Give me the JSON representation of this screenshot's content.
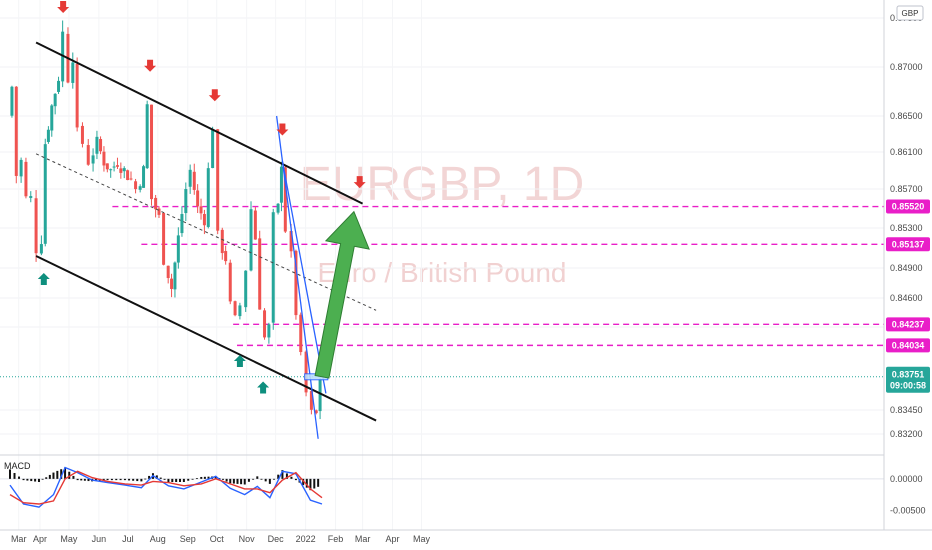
{
  "instrument": {
    "symbol": "EURGBP, 1D",
    "name": "Euro / British Pound",
    "currency": "GBP"
  },
  "indicator": {
    "label": "MACD"
  },
  "colors": {
    "bull": "#26a69a",
    "bear": "#ef5350",
    "level": "#e91ec8",
    "channel": "#111111",
    "trend": "#2962ff",
    "arrow": "#4caf50",
    "macd": "#2962ff",
    "signal": "#e53935",
    "marker_up": "#0e8f7e",
    "marker_down": "#e53935"
  },
  "chart_data": [
    {
      "type": "candlestick",
      "title": "EURGBP, 1D",
      "subtitle": "Euro / British Pound",
      "x_ticks": [
        "Mar",
        "Apr",
        "May",
        "Jun",
        "Jul",
        "Aug",
        "Sep",
        "Oct",
        "Nov",
        "Dec",
        "2022",
        "Feb",
        "Mar",
        "Apr",
        "May"
      ],
      "y_ticks": [
        "0.87300",
        "0.87000",
        "0.86500",
        "0.86100",
        "0.85700",
        "0.85300",
        "0.84900",
        "0.84600",
        "0.84200",
        "0.83450",
        "0.83200"
      ],
      "ylim": [
        0.8315,
        0.874
      ],
      "price_badges": [
        {
          "label": "0.85520",
          "value": 0.8552,
          "color": "#e91ec8"
        },
        {
          "label": "0.85137",
          "value": 0.85137,
          "color": "#e91ec8"
        },
        {
          "label": "0.84237",
          "value": 0.84237,
          "color": "#e91ec8"
        },
        {
          "label": "0.84034",
          "value": 0.84034,
          "color": "#e91ec8"
        }
      ],
      "last_price": {
        "label": "0.83751",
        "countdown": "09:00:58",
        "value": 0.83751,
        "color": "#26a69a"
      },
      "horizontal_levels": [
        0.8552,
        0.85137,
        0.84237,
        0.84034
      ],
      "channel": {
        "upper": [
          [
            "2021-03-28",
            0.8715
          ],
          [
            "2022-03-01",
            0.8555
          ]
        ],
        "lower": [
          [
            "2021-03-28",
            0.8502
          ],
          [
            "2022-03-15",
            0.8334
          ]
        ],
        "mid": [
          [
            "2021-03-28",
            0.8608
          ],
          [
            "2022-03-15",
            0.8443
          ]
        ]
      },
      "projection_target": 0.8552,
      "markers": [
        {
          "date": "2021-04-05",
          "type": "up"
        },
        {
          "date": "2021-04-25",
          "type": "down"
        },
        {
          "date": "2021-07-24",
          "type": "down"
        },
        {
          "date": "2021-09-29",
          "type": "down"
        },
        {
          "date": "2021-10-25",
          "type": "up"
        },
        {
          "date": "2021-11-18",
          "type": "up"
        },
        {
          "date": "2021-12-08",
          "type": "down"
        },
        {
          "date": "2022-02-26",
          "type": "down"
        }
      ],
      "ohlc_path": [
        [
          "2021-03-01",
          0.865
        ],
        [
          "2021-03-05",
          0.868
        ],
        [
          "2021-03-10",
          0.8585
        ],
        [
          "2021-03-15",
          0.86
        ],
        [
          "2021-03-20",
          0.856
        ],
        [
          "2021-03-25",
          0.856
        ],
        [
          "2021-03-31",
          0.851
        ],
        [
          "2021-04-05",
          0.852
        ],
        [
          "2021-04-08",
          0.862
        ],
        [
          "2021-04-15",
          0.866
        ],
        [
          "2021-04-22",
          0.869
        ],
        [
          "2021-04-27",
          0.872
        ],
        [
          "2021-05-03",
          0.869
        ],
        [
          "2021-05-07",
          0.871
        ],
        [
          "2021-05-12",
          0.863
        ],
        [
          "2021-05-18",
          0.862
        ],
        [
          "2021-05-24",
          0.86
        ],
        [
          "2021-06-01",
          0.862
        ],
        [
          "2021-06-08",
          0.86
        ],
        [
          "2021-06-15",
          0.859
        ],
        [
          "2021-06-22",
          0.86
        ],
        [
          "2021-06-29",
          0.859
        ],
        [
          "2021-07-06",
          0.858
        ],
        [
          "2021-07-12",
          0.857
        ],
        [
          "2021-07-19",
          0.859
        ],
        [
          "2021-07-23",
          0.866
        ],
        [
          "2021-07-28",
          0.856
        ],
        [
          "2021-08-04",
          0.854
        ],
        [
          "2021-08-10",
          0.85
        ],
        [
          "2021-08-17",
          0.847
        ],
        [
          "2021-08-24",
          0.852
        ],
        [
          "2021-09-01",
          0.857
        ],
        [
          "2021-09-06",
          0.859
        ],
        [
          "2021-09-13",
          0.855
        ],
        [
          "2021-09-20",
          0.854
        ],
        [
          "2021-09-29",
          0.864
        ],
        [
          "2021-10-05",
          0.852
        ],
        [
          "2021-10-12",
          0.85
        ],
        [
          "2021-10-18",
          0.845
        ],
        [
          "2021-10-22",
          0.843
        ],
        [
          "2021-10-28",
          0.845
        ],
        [
          "2021-11-03",
          0.849
        ],
        [
          "2021-11-08",
          0.855
        ],
        [
          "2021-11-12",
          0.852
        ],
        [
          "2021-11-17",
          0.845
        ],
        [
          "2021-11-22",
          0.841
        ],
        [
          "2021-11-26",
          0.842
        ],
        [
          "2021-12-01",
          0.854
        ],
        [
          "2021-12-06",
          0.855
        ],
        [
          "2021-12-08",
          0.86
        ],
        [
          "2021-12-14",
          0.853
        ],
        [
          "2021-12-20",
          0.85
        ],
        [
          "2021-12-24",
          0.844
        ],
        [
          "2021-12-30",
          0.839
        ],
        [
          "2022-01-04",
          0.836
        ],
        [
          "2022-01-10",
          0.834
        ],
        [
          "2022-01-14",
          0.834
        ],
        [
          "2022-01-18",
          0.8375
        ]
      ]
    },
    {
      "type": "macd",
      "title": "MACD",
      "y_ticks": [
        "0.00000",
        "-0.00500"
      ],
      "ylim": [
        -0.0075,
        0.003
      ],
      "x": [
        "2021-03-01",
        "2021-03-15",
        "2021-03-31",
        "2021-04-15",
        "2021-04-27",
        "2021-05-10",
        "2021-05-25",
        "2021-06-10",
        "2021-06-28",
        "2021-07-15",
        "2021-07-27",
        "2021-08-12",
        "2021-08-28",
        "2021-09-15",
        "2021-09-30",
        "2021-10-15",
        "2021-10-30",
        "2021-11-12",
        "2021-11-25",
        "2021-12-08",
        "2021-12-22",
        "2022-01-06",
        "2022-01-18"
      ],
      "series": [
        {
          "name": "MACD",
          "values": [
            -0.001,
            -0.004,
            -0.0045,
            -0.0025,
            0.0018,
            0.001,
            -0.0002,
            -0.0006,
            -0.001,
            -0.0014,
            0.0005,
            -0.0011,
            -0.0016,
            -0.0005,
            0.0004,
            -0.0015,
            -0.0025,
            -0.0012,
            -0.003,
            0.0012,
            0.0008,
            -0.0034,
            -0.004
          ]
        },
        {
          "name": "Signal",
          "values": [
            -0.0025,
            -0.0038,
            -0.004,
            -0.0035,
            0.0,
            0.0012,
            0.0002,
            -0.0004,
            -0.0008,
            -0.001,
            -0.0004,
            -0.0006,
            -0.0011,
            -0.0008,
            0.0,
            -0.0008,
            -0.0016,
            -0.0016,
            -0.0022,
            -0.0002,
            0.001,
            -0.0016,
            -0.003
          ]
        }
      ],
      "histogram": [
        0.0015,
        -0.0002,
        -0.0005,
        0.001,
        0.0018,
        -0.0002,
        -0.0004,
        -0.0002,
        -0.0002,
        -0.0004,
        0.0009,
        -0.0005,
        -0.0005,
        0.0003,
        0.0004,
        -0.0007,
        -0.0009,
        0.0004,
        -0.0008,
        0.0014,
        -0.0002,
        -0.0018,
        -0.001
      ]
    }
  ]
}
